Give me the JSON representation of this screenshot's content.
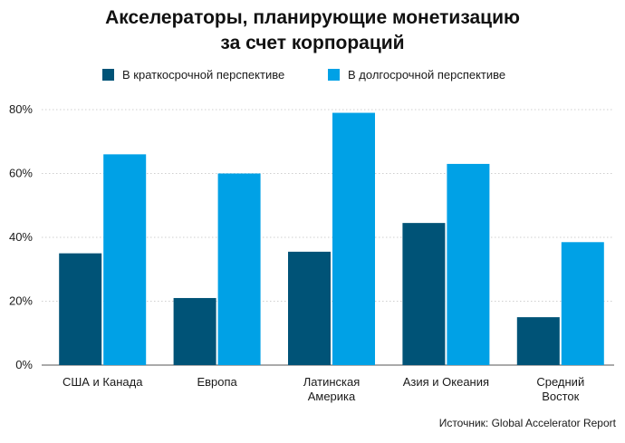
{
  "title": {
    "line1": "Акселераторы, планирующие монетизацию",
    "line2": "за счет корпораций"
  },
  "colors": {
    "short_term": "#005377",
    "long_term": "#00a1e6",
    "grid": "#cfcfcf",
    "axis": "#555555"
  },
  "chart_data": {
    "type": "bar",
    "title": "Акселераторы, планирующие монетизацию за счет корпораций",
    "categories": [
      [
        "США и Канада"
      ],
      [
        "Европа"
      ],
      [
        "Латинская",
        "Америка"
      ],
      [
        "Азия и Океания"
      ],
      [
        "Средний",
        "Восток"
      ]
    ],
    "series": [
      {
        "name": "В краткосрочной перспективе",
        "values": [
          35,
          21,
          35.5,
          44.5,
          15
        ]
      },
      {
        "name": "В долгосрочной перспективе",
        "values": [
          66,
          60,
          79,
          63,
          38.5
        ]
      }
    ],
    "ylim": [
      0,
      80
    ],
    "yticks": [
      0,
      20,
      40,
      60,
      80
    ],
    "ytick_labels": [
      "0%",
      "20%",
      "40%",
      "60%",
      "80%"
    ],
    "grid": true,
    "legend_position": "top"
  },
  "source": "Источник: Global Accelerator Report"
}
